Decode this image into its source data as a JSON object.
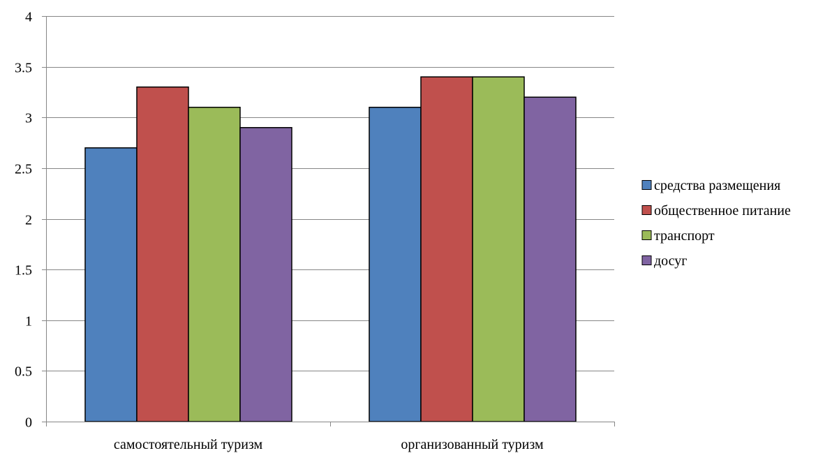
{
  "chart_data": {
    "type": "bar",
    "title": "",
    "xlabel": "",
    "ylabel": "",
    "categories": [
      "самостоятельный туризм",
      "организованный туризм"
    ],
    "series": [
      {
        "name": "средства размещения",
        "color": "#4F81BD",
        "values": [
          2.7,
          3.1
        ]
      },
      {
        "name": "общественное питание",
        "color": "#C0504D",
        "values": [
          3.3,
          3.4
        ]
      },
      {
        "name": "транспорт",
        "color": "#9BBB59",
        "values": [
          3.1,
          3.4
        ]
      },
      {
        "name": "досуг",
        "color": "#8064A2",
        "values": [
          2.9,
          3.2
        ]
      }
    ],
    "ylim": [
      0,
      4
    ],
    "yticks": [
      "0",
      "0.5",
      "1",
      "1.5",
      "2",
      "2.5",
      "3",
      "3.5",
      "4"
    ],
    "grid": true,
    "legend_position": "right"
  }
}
